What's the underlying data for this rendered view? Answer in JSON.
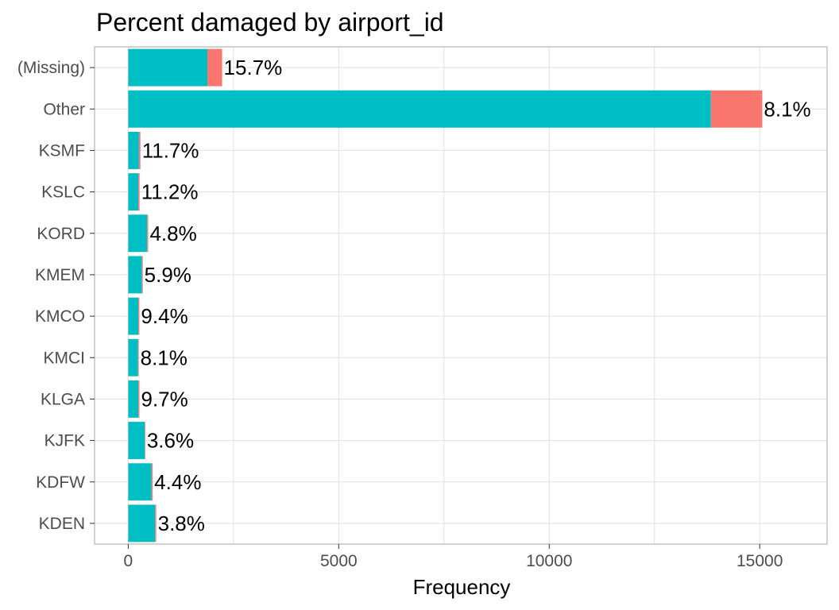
{
  "title": "Percent damaged by airport_id",
  "colors": {
    "not_damaged": "#00BFC4",
    "damaged": "#F8766D",
    "grid": "#e0e0e0",
    "panel_border": "#b3b3b3"
  },
  "chart_data": {
    "type": "bar",
    "orientation": "horizontal",
    "stacked": true,
    "title": "Percent damaged by airport_id",
    "xlabel": "Frequency",
    "ylabel": "",
    "xlim": [
      -800,
      16600
    ],
    "x_ticks": [
      0,
      5000,
      10000,
      15000
    ],
    "grid": true,
    "legend": "none",
    "categories": [
      "(Missing)",
      "Other",
      "KSMF",
      "KSLC",
      "KORD",
      "KMEM",
      "KMCO",
      "KMCI",
      "KLGA",
      "KJFK",
      "KDFW",
      "KDEN"
    ],
    "series": [
      {
        "color": "#00BFC4",
        "values": [
          1880,
          13840,
          255,
          240,
          450,
          325,
          240,
          230,
          240,
          390,
          555,
          640
        ]
      },
      {
        "color": "#F8766D",
        "values": [
          350,
          1220,
          34,
          30,
          23,
          20,
          25,
          20,
          26,
          15,
          26,
          25
        ]
      }
    ],
    "data_labels": [
      "15.7%",
      "8.1%",
      "11.7%",
      "11.2%",
      "4.8%",
      "5.9%",
      "9.4%",
      "8.1%",
      "9.7%",
      "3.6%",
      "4.4%",
      "3.8%"
    ]
  }
}
